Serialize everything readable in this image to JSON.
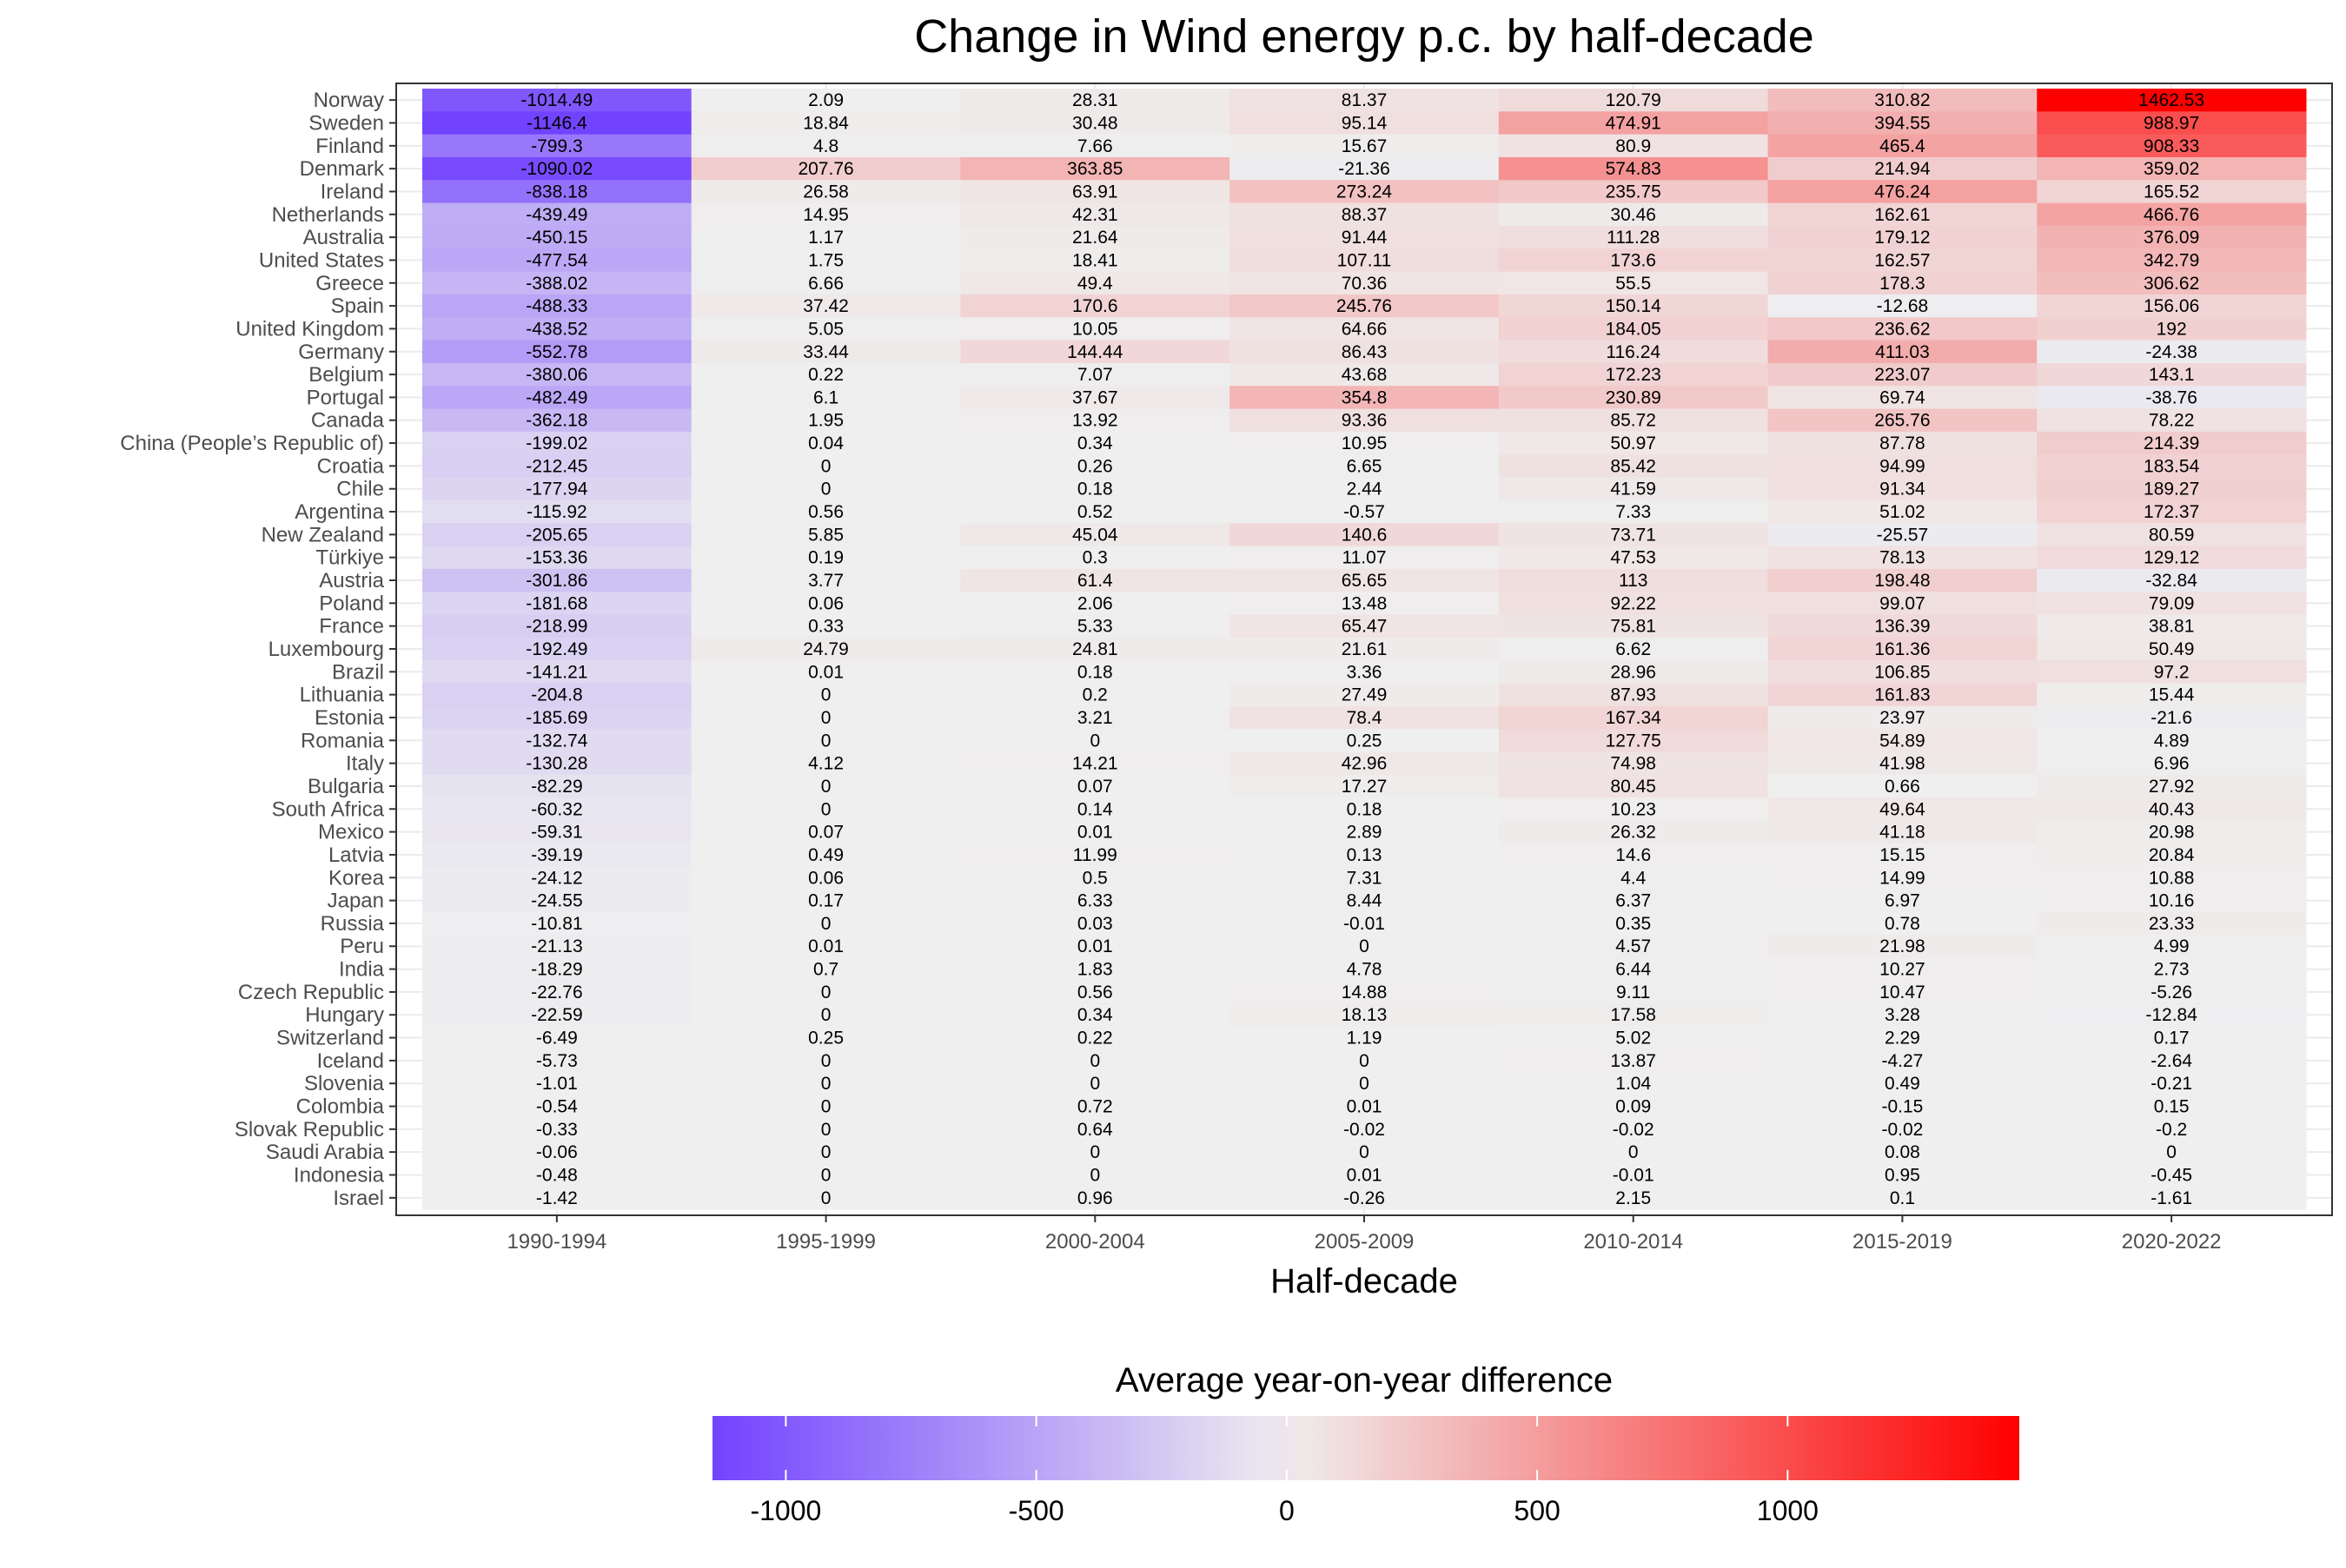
{
  "chart_data": {
    "type": "heatmap",
    "title": "Change in Wind energy p.c. by half-decade",
    "xlabel": "Half-decade",
    "ylabel": "",
    "legend_title": "Average year-on-year difference",
    "legend_position": "bottom",
    "legend_ticks": [
      "-1000",
      "-500",
      "0",
      "500",
      "1000"
    ],
    "color_scale": {
      "low": "#7243ff",
      "mid": "#efefef",
      "high": "#ff0000",
      "min": -1146.4,
      "max": 1462.53,
      "midpoint": 0
    },
    "columns": [
      "1990-1994",
      "1995-1999",
      "2000-2004",
      "2005-2009",
      "2010-2014",
      "2015-2019",
      "2020-2022"
    ],
    "rows": [
      "Norway",
      "Sweden",
      "Finland",
      "Denmark",
      "Ireland",
      "Netherlands",
      "Australia",
      "United States",
      "Greece",
      "Spain",
      "United Kingdom",
      "Germany",
      "Belgium",
      "Portugal",
      "Canada",
      "China (People’s Republic of)",
      "Croatia",
      "Chile",
      "Argentina",
      "New Zealand",
      "Türkiye",
      "Austria",
      "Poland",
      "France",
      "Luxembourg",
      "Brazil",
      "Lithuania",
      "Estonia",
      "Romania",
      "Italy",
      "Bulgaria",
      "South Africa",
      "Mexico",
      "Latvia",
      "Korea",
      "Japan",
      "Russia",
      "Peru",
      "India",
      "Czech Republic",
      "Hungary",
      "Switzerland",
      "Iceland",
      "Slovenia",
      "Colombia",
      "Slovak Republic",
      "Saudi Arabia",
      "Indonesia",
      "Israel"
    ],
    "values": [
      [
        "-1014.49",
        "2.09",
        "28.31",
        "81.37",
        "120.79",
        "310.82",
        "1462.53"
      ],
      [
        "-1146.4",
        "18.84",
        "30.48",
        "95.14",
        "474.91",
        "394.55",
        "988.97"
      ],
      [
        "-799.3",
        "4.8",
        "7.66",
        "15.67",
        "80.9",
        "465.4",
        "908.33"
      ],
      [
        "-1090.02",
        "207.76",
        "363.85",
        "-21.36",
        "574.83",
        "214.94",
        "359.02"
      ],
      [
        "-838.18",
        "26.58",
        "63.91",
        "273.24",
        "235.75",
        "476.24",
        "165.52"
      ],
      [
        "-439.49",
        "14.95",
        "42.31",
        "88.37",
        "30.46",
        "162.61",
        "466.76"
      ],
      [
        "-450.15",
        "1.17",
        "21.64",
        "91.44",
        "111.28",
        "179.12",
        "376.09"
      ],
      [
        "-477.54",
        "1.75",
        "18.41",
        "107.11",
        "173.6",
        "162.57",
        "342.79"
      ],
      [
        "-388.02",
        "6.66",
        "49.4",
        "70.36",
        "55.5",
        "178.3",
        "306.62"
      ],
      [
        "-488.33",
        "37.42",
        "170.6",
        "245.76",
        "150.14",
        "-12.68",
        "156.06"
      ],
      [
        "-438.52",
        "5.05",
        "10.05",
        "64.66",
        "184.05",
        "236.62",
        "192"
      ],
      [
        "-552.78",
        "33.44",
        "144.44",
        "86.43",
        "116.24",
        "411.03",
        "-24.38"
      ],
      [
        "-380.06",
        "0.22",
        "7.07",
        "43.68",
        "172.23",
        "223.07",
        "143.1"
      ],
      [
        "-482.49",
        "6.1",
        "37.67",
        "354.8",
        "230.89",
        "69.74",
        "-38.76"
      ],
      [
        "-362.18",
        "1.95",
        "13.92",
        "93.36",
        "85.72",
        "265.76",
        "78.22"
      ],
      [
        "-199.02",
        "0.04",
        "0.34",
        "10.95",
        "50.97",
        "87.78",
        "214.39"
      ],
      [
        "-212.45",
        "0",
        "0.26",
        "6.65",
        "85.42",
        "94.99",
        "183.54"
      ],
      [
        "-177.94",
        "0",
        "0.18",
        "2.44",
        "41.59",
        "91.34",
        "189.27"
      ],
      [
        "-115.92",
        "0.56",
        "0.52",
        "-0.57",
        "7.33",
        "51.02",
        "172.37"
      ],
      [
        "-205.65",
        "5.85",
        "45.04",
        "140.6",
        "73.71",
        "-25.57",
        "80.59"
      ],
      [
        "-153.36",
        "0.19",
        "0.3",
        "11.07",
        "47.53",
        "78.13",
        "129.12"
      ],
      [
        "-301.86",
        "3.77",
        "61.4",
        "65.65",
        "113",
        "198.48",
        "-32.84"
      ],
      [
        "-181.68",
        "0.06",
        "2.06",
        "13.48",
        "92.22",
        "99.07",
        "79.09"
      ],
      [
        "-218.99",
        "0.33",
        "5.33",
        "65.47",
        "75.81",
        "136.39",
        "38.81"
      ],
      [
        "-192.49",
        "24.79",
        "24.81",
        "21.61",
        "6.62",
        "161.36",
        "50.49"
      ],
      [
        "-141.21",
        "0.01",
        "0.18",
        "3.36",
        "28.96",
        "106.85",
        "97.2"
      ],
      [
        "-204.8",
        "0",
        "0.2",
        "27.49",
        "87.93",
        "161.83",
        "15.44"
      ],
      [
        "-185.69",
        "0",
        "3.21",
        "78.4",
        "167.34",
        "23.97",
        "-21.6"
      ],
      [
        "-132.74",
        "0",
        "0",
        "0.25",
        "127.75",
        "54.89",
        "4.89"
      ],
      [
        "-130.28",
        "4.12",
        "14.21",
        "42.96",
        "74.98",
        "41.98",
        "6.96"
      ],
      [
        "-82.29",
        "0",
        "0.07",
        "17.27",
        "80.45",
        "0.66",
        "27.92"
      ],
      [
        "-60.32",
        "0",
        "0.14",
        "0.18",
        "10.23",
        "49.64",
        "40.43"
      ],
      [
        "-59.31",
        "0.07",
        "0.01",
        "2.89",
        "26.32",
        "41.18",
        "20.98"
      ],
      [
        "-39.19",
        "0.49",
        "11.99",
        "0.13",
        "14.6",
        "15.15",
        "20.84"
      ],
      [
        "-24.12",
        "0.06",
        "0.5",
        "7.31",
        "4.4",
        "14.99",
        "10.88"
      ],
      [
        "-24.55",
        "0.17",
        "6.33",
        "8.44",
        "6.37",
        "6.97",
        "10.16"
      ],
      [
        "-10.81",
        "0",
        "0.03",
        "-0.01",
        "0.35",
        "0.78",
        "23.33"
      ],
      [
        "-21.13",
        "0.01",
        "0.01",
        "0",
        "4.57",
        "21.98",
        "4.99"
      ],
      [
        "-18.29",
        "0.7",
        "1.83",
        "4.78",
        "6.44",
        "10.27",
        "2.73"
      ],
      [
        "-22.76",
        "0",
        "0.56",
        "14.88",
        "9.11",
        "10.47",
        "-5.26"
      ],
      [
        "-22.59",
        "0",
        "0.34",
        "18.13",
        "17.58",
        "3.28",
        "-12.84"
      ],
      [
        "-6.49",
        "0.25",
        "0.22",
        "1.19",
        "5.02",
        "2.29",
        "0.17"
      ],
      [
        "-5.73",
        "0",
        "0",
        "0",
        "13.87",
        "-4.27",
        "-2.64"
      ],
      [
        "-1.01",
        "0",
        "0",
        "0",
        "1.04",
        "0.49",
        "-0.21"
      ],
      [
        "-0.54",
        "0",
        "0.72",
        "0.01",
        "0.09",
        "-0.15",
        "0.15"
      ],
      [
        "-0.33",
        "0",
        "0.64",
        "-0.02",
        "-0.02",
        "-0.02",
        "-0.2"
      ],
      [
        "-0.06",
        "0",
        "0",
        "0",
        "0",
        "0.08",
        "0"
      ],
      [
        "-0.48",
        "0",
        "0",
        "0.01",
        "-0.01",
        "0.95",
        "-0.45"
      ],
      [
        "-1.42",
        "0",
        "0.96",
        "-0.26",
        "2.15",
        "0.1",
        "-1.61"
      ]
    ]
  }
}
